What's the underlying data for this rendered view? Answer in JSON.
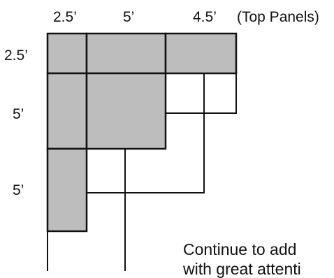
{
  "top_labels": {
    "col1": "2.5’",
    "col2": "5’",
    "col3": "4.5’",
    "note": "(Top Panels)"
  },
  "side_labels": {
    "row1": "2.5’",
    "row2": "5’",
    "row3": "5’"
  },
  "caption": {
    "line1": "Continue to add",
    "line2": "with great attenti"
  },
  "colors": {
    "panel_fill": "#bdbdbd",
    "stroke": "#111111"
  }
}
